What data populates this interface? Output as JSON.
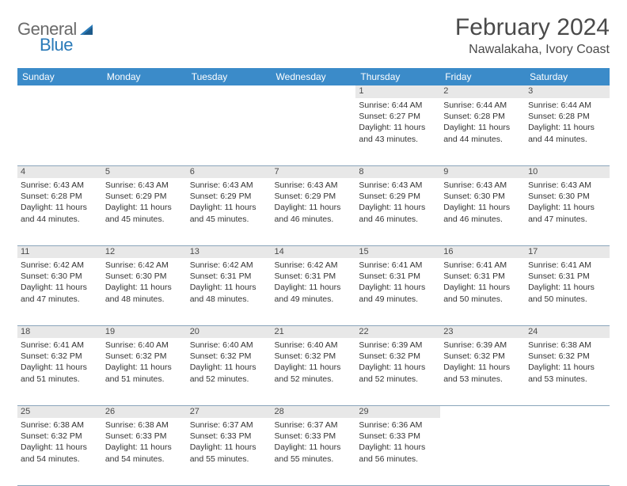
{
  "brand": {
    "part1": "General",
    "part2": "Blue"
  },
  "title": "February 2024",
  "location": "Nawalakaha, Ivory Coast",
  "colors": {
    "header_bg": "#3b8bc9",
    "header_text": "#ffffff",
    "daynum_bg": "#e8e8e8",
    "border": "#8aa5bb",
    "text": "#333333",
    "title_text": "#4a4a4a",
    "logo_gray": "#6a6a6a",
    "logo_blue": "#2a7ab8",
    "page_bg": "#ffffff"
  },
  "typography": {
    "title_fontsize": 30,
    "location_fontsize": 16,
    "header_fontsize": 12,
    "daynum_fontsize": 11,
    "cell_fontsize": 10.5,
    "logo_fontsize": 22
  },
  "days": [
    "Sunday",
    "Monday",
    "Tuesday",
    "Wednesday",
    "Thursday",
    "Friday",
    "Saturday"
  ],
  "weeks": [
    [
      null,
      null,
      null,
      null,
      {
        "n": "1",
        "sr": "Sunrise: 6:44 AM",
        "ss": "Sunset: 6:27 PM",
        "d1": "Daylight: 11 hours",
        "d2": "and 43 minutes."
      },
      {
        "n": "2",
        "sr": "Sunrise: 6:44 AM",
        "ss": "Sunset: 6:28 PM",
        "d1": "Daylight: 11 hours",
        "d2": "and 44 minutes."
      },
      {
        "n": "3",
        "sr": "Sunrise: 6:44 AM",
        "ss": "Sunset: 6:28 PM",
        "d1": "Daylight: 11 hours",
        "d2": "and 44 minutes."
      }
    ],
    [
      {
        "n": "4",
        "sr": "Sunrise: 6:43 AM",
        "ss": "Sunset: 6:28 PM",
        "d1": "Daylight: 11 hours",
        "d2": "and 44 minutes."
      },
      {
        "n": "5",
        "sr": "Sunrise: 6:43 AM",
        "ss": "Sunset: 6:29 PM",
        "d1": "Daylight: 11 hours",
        "d2": "and 45 minutes."
      },
      {
        "n": "6",
        "sr": "Sunrise: 6:43 AM",
        "ss": "Sunset: 6:29 PM",
        "d1": "Daylight: 11 hours",
        "d2": "and 45 minutes."
      },
      {
        "n": "7",
        "sr": "Sunrise: 6:43 AM",
        "ss": "Sunset: 6:29 PM",
        "d1": "Daylight: 11 hours",
        "d2": "and 46 minutes."
      },
      {
        "n": "8",
        "sr": "Sunrise: 6:43 AM",
        "ss": "Sunset: 6:29 PM",
        "d1": "Daylight: 11 hours",
        "d2": "and 46 minutes."
      },
      {
        "n": "9",
        "sr": "Sunrise: 6:43 AM",
        "ss": "Sunset: 6:30 PM",
        "d1": "Daylight: 11 hours",
        "d2": "and 46 minutes."
      },
      {
        "n": "10",
        "sr": "Sunrise: 6:43 AM",
        "ss": "Sunset: 6:30 PM",
        "d1": "Daylight: 11 hours",
        "d2": "and 47 minutes."
      }
    ],
    [
      {
        "n": "11",
        "sr": "Sunrise: 6:42 AM",
        "ss": "Sunset: 6:30 PM",
        "d1": "Daylight: 11 hours",
        "d2": "and 47 minutes."
      },
      {
        "n": "12",
        "sr": "Sunrise: 6:42 AM",
        "ss": "Sunset: 6:30 PM",
        "d1": "Daylight: 11 hours",
        "d2": "and 48 minutes."
      },
      {
        "n": "13",
        "sr": "Sunrise: 6:42 AM",
        "ss": "Sunset: 6:31 PM",
        "d1": "Daylight: 11 hours",
        "d2": "and 48 minutes."
      },
      {
        "n": "14",
        "sr": "Sunrise: 6:42 AM",
        "ss": "Sunset: 6:31 PM",
        "d1": "Daylight: 11 hours",
        "d2": "and 49 minutes."
      },
      {
        "n": "15",
        "sr": "Sunrise: 6:41 AM",
        "ss": "Sunset: 6:31 PM",
        "d1": "Daylight: 11 hours",
        "d2": "and 49 minutes."
      },
      {
        "n": "16",
        "sr": "Sunrise: 6:41 AM",
        "ss": "Sunset: 6:31 PM",
        "d1": "Daylight: 11 hours",
        "d2": "and 50 minutes."
      },
      {
        "n": "17",
        "sr": "Sunrise: 6:41 AM",
        "ss": "Sunset: 6:31 PM",
        "d1": "Daylight: 11 hours",
        "d2": "and 50 minutes."
      }
    ],
    [
      {
        "n": "18",
        "sr": "Sunrise: 6:41 AM",
        "ss": "Sunset: 6:32 PM",
        "d1": "Daylight: 11 hours",
        "d2": "and 51 minutes."
      },
      {
        "n": "19",
        "sr": "Sunrise: 6:40 AM",
        "ss": "Sunset: 6:32 PM",
        "d1": "Daylight: 11 hours",
        "d2": "and 51 minutes."
      },
      {
        "n": "20",
        "sr": "Sunrise: 6:40 AM",
        "ss": "Sunset: 6:32 PM",
        "d1": "Daylight: 11 hours",
        "d2": "and 52 minutes."
      },
      {
        "n": "21",
        "sr": "Sunrise: 6:40 AM",
        "ss": "Sunset: 6:32 PM",
        "d1": "Daylight: 11 hours",
        "d2": "and 52 minutes."
      },
      {
        "n": "22",
        "sr": "Sunrise: 6:39 AM",
        "ss": "Sunset: 6:32 PM",
        "d1": "Daylight: 11 hours",
        "d2": "and 52 minutes."
      },
      {
        "n": "23",
        "sr": "Sunrise: 6:39 AM",
        "ss": "Sunset: 6:32 PM",
        "d1": "Daylight: 11 hours",
        "d2": "and 53 minutes."
      },
      {
        "n": "24",
        "sr": "Sunrise: 6:38 AM",
        "ss": "Sunset: 6:32 PM",
        "d1": "Daylight: 11 hours",
        "d2": "and 53 minutes."
      }
    ],
    [
      {
        "n": "25",
        "sr": "Sunrise: 6:38 AM",
        "ss": "Sunset: 6:32 PM",
        "d1": "Daylight: 11 hours",
        "d2": "and 54 minutes."
      },
      {
        "n": "26",
        "sr": "Sunrise: 6:38 AM",
        "ss": "Sunset: 6:33 PM",
        "d1": "Daylight: 11 hours",
        "d2": "and 54 minutes."
      },
      {
        "n": "27",
        "sr": "Sunrise: 6:37 AM",
        "ss": "Sunset: 6:33 PM",
        "d1": "Daylight: 11 hours",
        "d2": "and 55 minutes."
      },
      {
        "n": "28",
        "sr": "Sunrise: 6:37 AM",
        "ss": "Sunset: 6:33 PM",
        "d1": "Daylight: 11 hours",
        "d2": "and 55 minutes."
      },
      {
        "n": "29",
        "sr": "Sunrise: 6:36 AM",
        "ss": "Sunset: 6:33 PM",
        "d1": "Daylight: 11 hours",
        "d2": "and 56 minutes."
      },
      null,
      null
    ]
  ]
}
